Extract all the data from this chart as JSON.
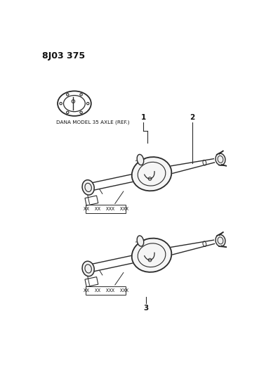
{
  "title": "8J03 375",
  "ref_label": "DANA MODEL 35 AXLE (REF.)",
  "part_numbers_1": "XX  XX  XXX  XXX",
  "part_numbers_2": "XX  XX  XXX  XXX",
  "callout_1": "1",
  "callout_2": "2",
  "callout_3": "3",
  "bg_color": "#ffffff",
  "line_color": "#2a2a2a",
  "text_color": "#111111",
  "fig_width": 3.96,
  "fig_height": 5.33
}
